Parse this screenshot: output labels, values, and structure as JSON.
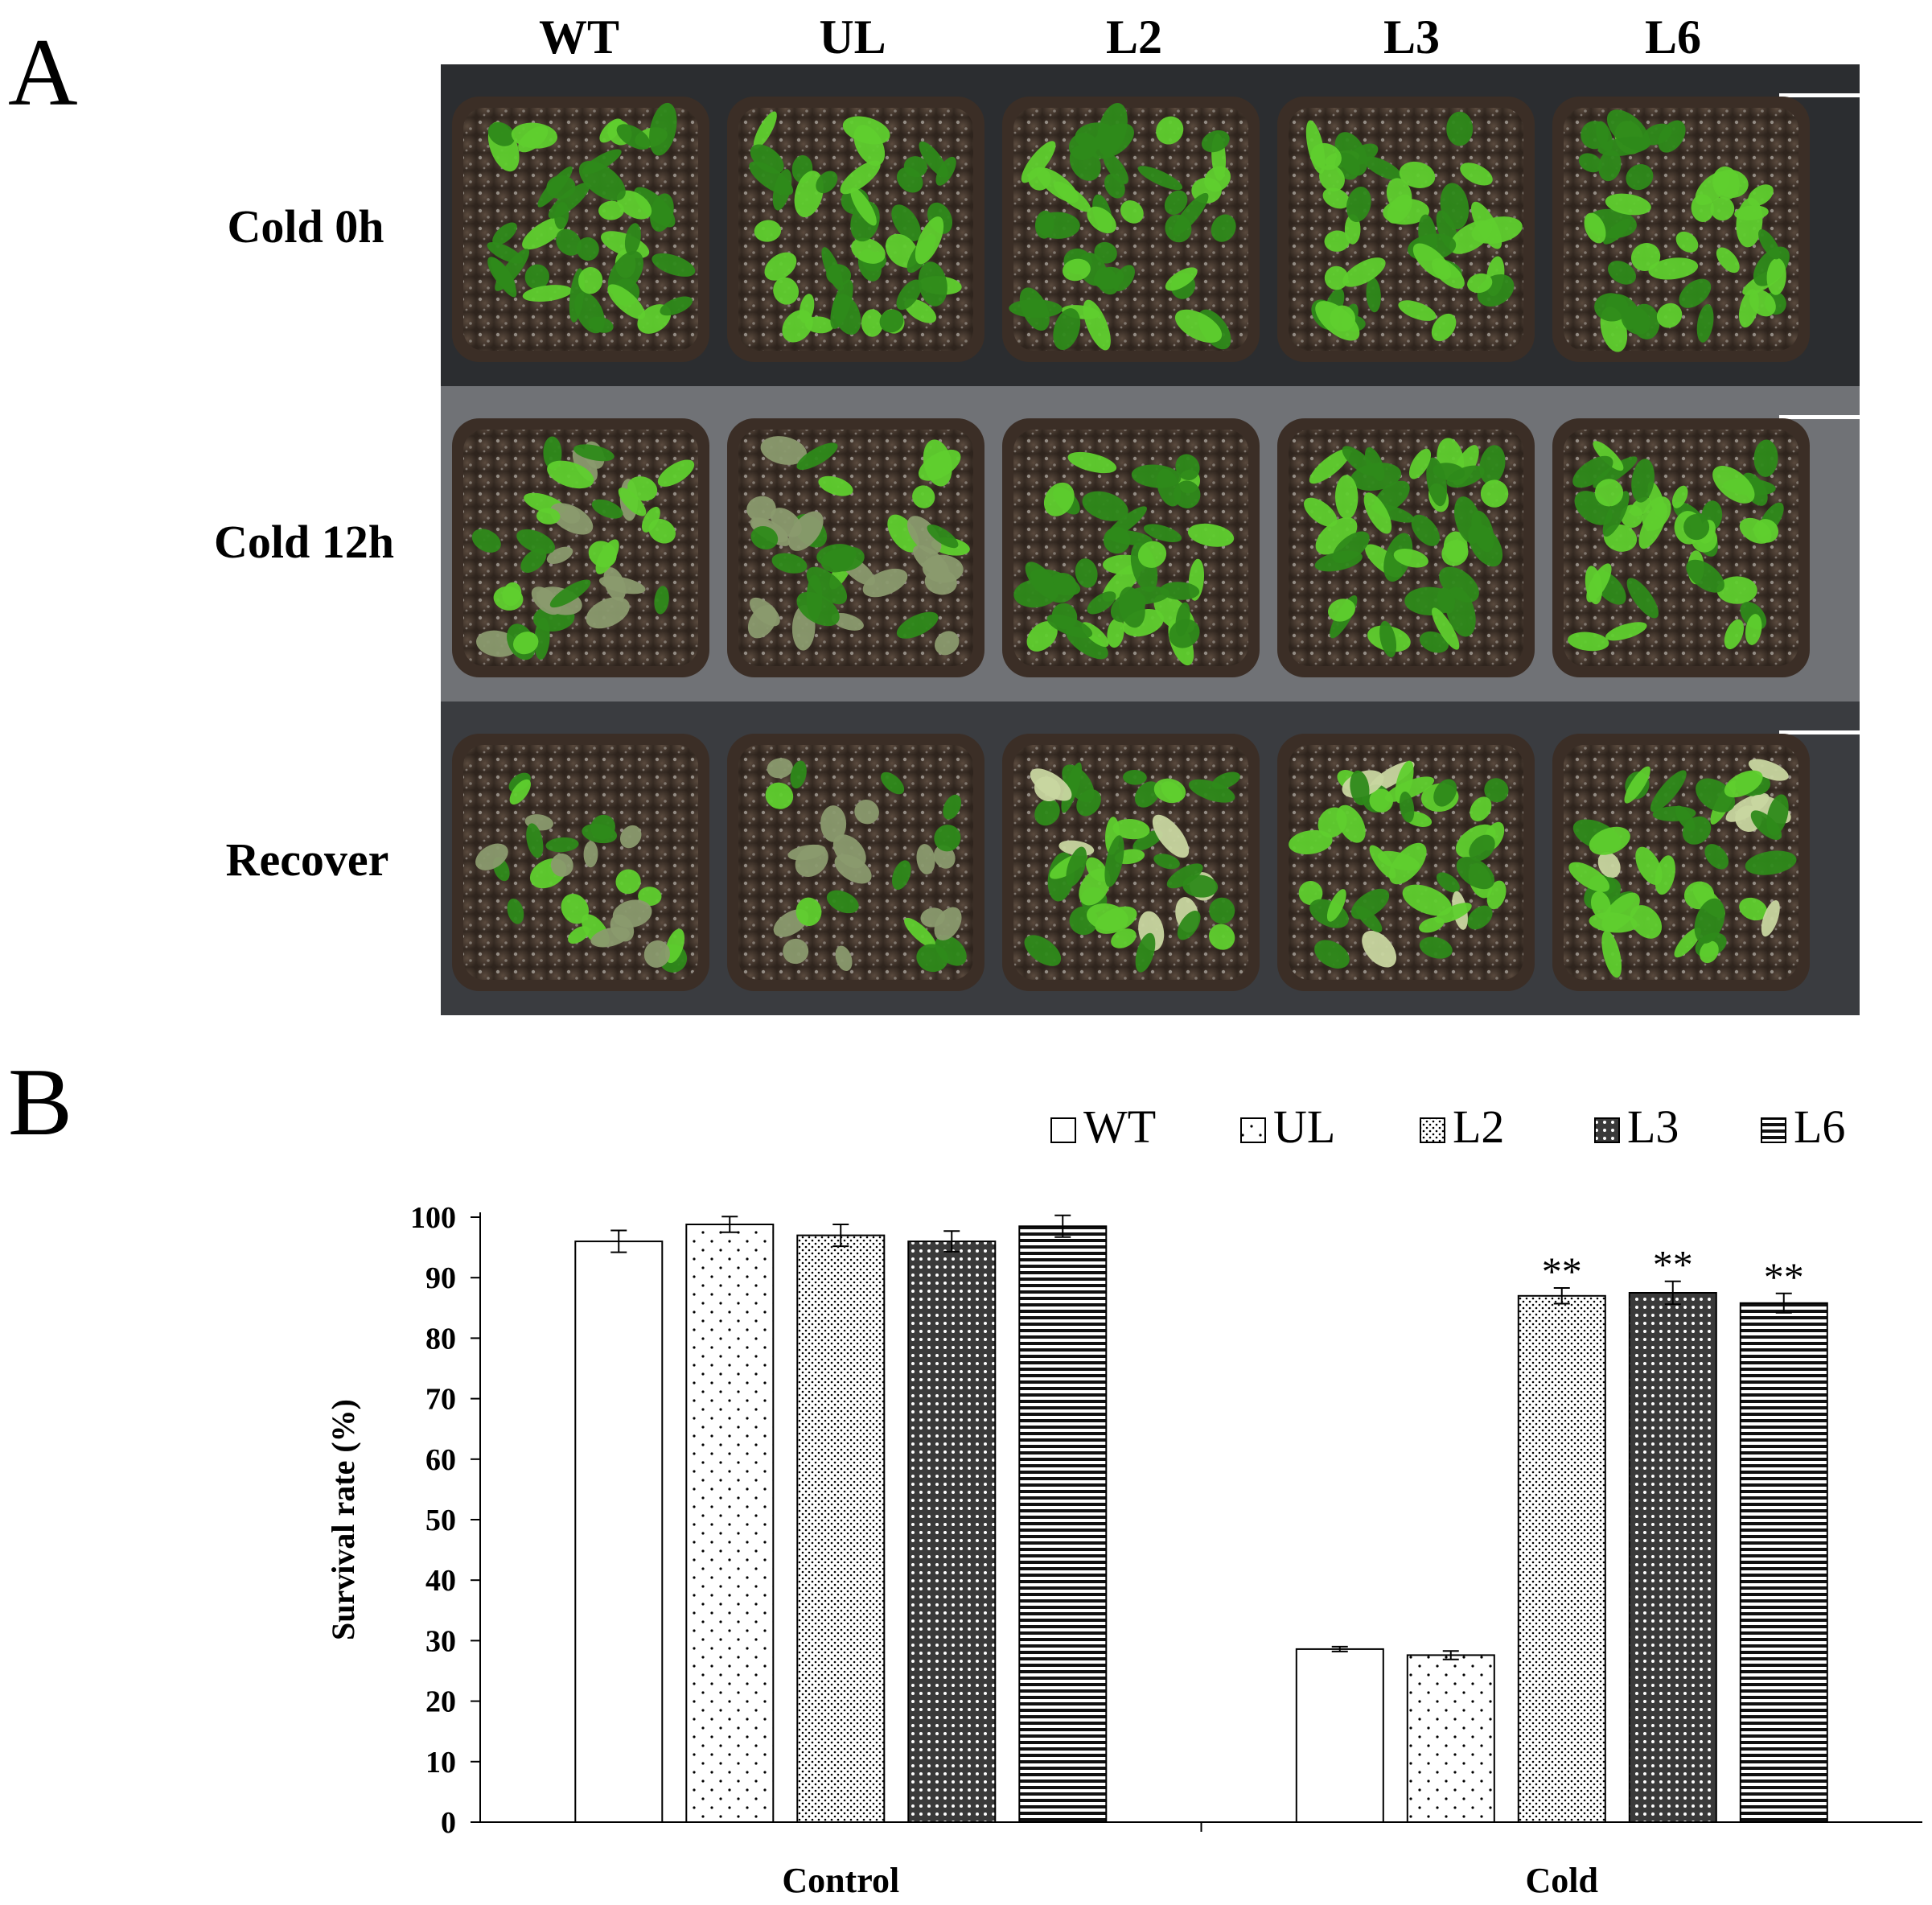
{
  "panel_a": {
    "letter": "A",
    "columns": [
      "WT",
      "UL",
      "L2",
      "L3",
      "L6"
    ],
    "rows": [
      "Cold 0h",
      "Cold 12h",
      "Recover"
    ],
    "colors": {
      "background_top": "#2b2d30",
      "background_mid": "#707276",
      "background_bot": "#3a3c40",
      "pot": "#3b2e26",
      "soil": "#4a3a30",
      "leaf": "#5fcf2e",
      "leaf_dark": "#2e8a1a",
      "scale_bar": "#ffffff"
    }
  },
  "panel_b": {
    "letter": "B",
    "chart_data": {
      "type": "bar",
      "categories": [
        "Control",
        "Cold"
      ],
      "series": [
        {
          "name": "WT",
          "values": [
            96,
            28.6
          ],
          "errors": [
            1.8,
            0.4
          ],
          "pattern": "solid-white",
          "sig": [
            "",
            ""
          ]
        },
        {
          "name": "UL",
          "values": [
            98.8,
            27.6
          ],
          "errors": [
            1.3,
            0.7
          ],
          "pattern": "sparse-dots",
          "sig": [
            "",
            ""
          ]
        },
        {
          "name": "L2",
          "values": [
            97,
            87
          ],
          "errors": [
            1.8,
            1.3
          ],
          "pattern": "dense-dots",
          "sig": [
            "",
            "**"
          ]
        },
        {
          "name": "L3",
          "values": [
            96,
            87.5
          ],
          "errors": [
            1.7,
            1.9
          ],
          "pattern": "checker",
          "sig": [
            "",
            "**"
          ]
        },
        {
          "name": "L6",
          "values": [
            98.5,
            85.8
          ],
          "errors": [
            1.8,
            1.6
          ],
          "pattern": "horizontal-lines",
          "sig": [
            "",
            "**"
          ]
        }
      ],
      "ylabel": "Survival rate (%)",
      "xlabel": "",
      "ylim": [
        0,
        100
      ],
      "yticks": [
        "0",
        "10",
        "20",
        "30",
        "40",
        "50",
        "60",
        "70",
        "80",
        "90",
        "100"
      ],
      "legend": "top-right",
      "grid": false
    }
  }
}
